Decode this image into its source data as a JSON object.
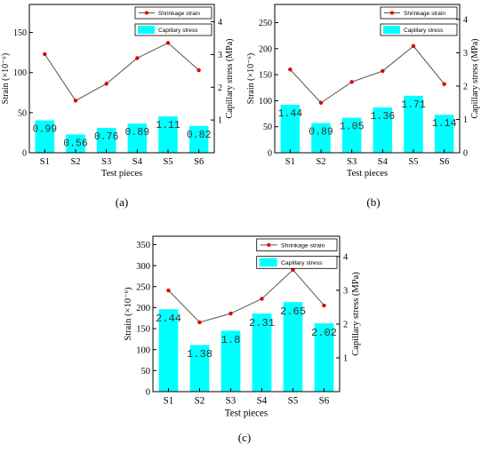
{
  "legend": {
    "line_label": "Shrinkage strain",
    "bar_label": "Capillary stress"
  },
  "colors": {
    "bar": "#00ffff",
    "line": "#555555",
    "marker": "#dd0000",
    "axis": "#000000"
  },
  "chart_data": [
    {
      "type": "bar+line",
      "panel_label": "(a)",
      "categories": [
        "S1",
        "S2",
        "S3",
        "S4",
        "S5",
        "S6"
      ],
      "xlabel": "Test pieces",
      "ylabel": "Strain (×10⁻⁶)",
      "y2label": "Capillary stress (MPa)",
      "ylim": [
        0,
        185
      ],
      "yticks": [
        0,
        50,
        100,
        150
      ],
      "y2lim": [
        0,
        4.53
      ],
      "y2ticks": [
        1,
        2,
        3,
        4
      ],
      "grid": false,
      "legend_position": "top-right",
      "series": [
        {
          "name": "Capillary stress",
          "kind": "bar",
          "axis": "right",
          "values": [
            0.99,
            0.56,
            0.76,
            0.89,
            1.11,
            0.82
          ]
        },
        {
          "name": "Shrinkage strain",
          "kind": "line",
          "axis": "left",
          "values": [
            123,
            65,
            86,
            118,
            137,
            103
          ]
        }
      ]
    },
    {
      "type": "bar+line",
      "panel_label": "(b)",
      "categories": [
        "S1",
        "S2",
        "S3",
        "S4",
        "S5",
        "S6"
      ],
      "xlabel": "Test pieces",
      "ylabel": "Strain (×10⁻⁶)",
      "y2label": "Capillary stress (MPa)",
      "ylim": [
        0,
        285
      ],
      "yticks": [
        0,
        50,
        100,
        150,
        200,
        250
      ],
      "y2lim": [
        0,
        4.45
      ],
      "y2ticks": [
        0,
        1,
        2,
        3,
        4
      ],
      "grid": false,
      "legend_position": "top-right",
      "series": [
        {
          "name": "Capillary stress",
          "kind": "bar",
          "axis": "right",
          "values": [
            1.44,
            0.89,
            1.05,
            1.36,
            1.71,
            1.14
          ]
        },
        {
          "name": "Shrinkage strain",
          "kind": "line",
          "axis": "left",
          "values": [
            160,
            96,
            136,
            157,
            205,
            132
          ]
        }
      ]
    },
    {
      "type": "bar+line",
      "panel_label": "(c)",
      "categories": [
        "S1",
        "S2",
        "S3",
        "S4",
        "S5",
        "S6"
      ],
      "xlabel": "Test pieces",
      "ylabel": "Strain (×10⁻⁶)",
      "y2label": "Capillary stress (MPa)",
      "ylim": [
        0,
        370
      ],
      "yticks": [
        0,
        50,
        100,
        150,
        200,
        250,
        300,
        350
      ],
      "y2lim": [
        0,
        4.6
      ],
      "y2ticks": [
        1,
        2,
        3,
        4
      ],
      "grid": false,
      "legend_position": "top-right",
      "series": [
        {
          "name": "Capillary stress",
          "kind": "bar",
          "axis": "right",
          "values": [
            2.44,
            1.38,
            1.8,
            2.31,
            2.65,
            2.02
          ]
        },
        {
          "name": "Shrinkage strain",
          "kind": "line",
          "axis": "left",
          "values": [
            241,
            165,
            186,
            221,
            290,
            205
          ]
        }
      ]
    }
  ]
}
